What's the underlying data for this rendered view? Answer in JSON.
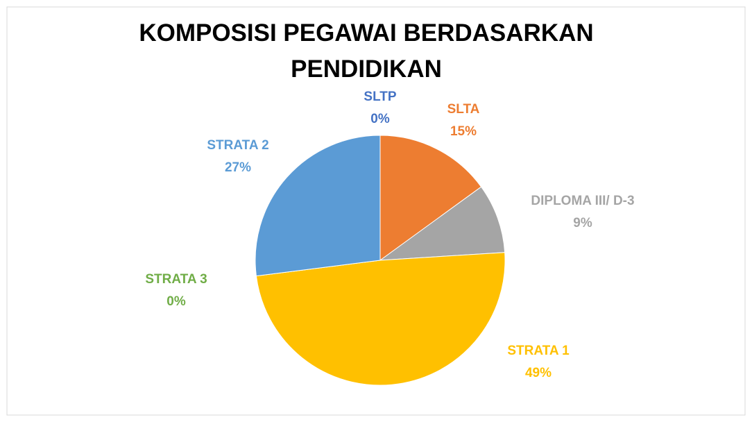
{
  "chart_data": {
    "type": "pie",
    "title": "KOMPOSISI PEGAWAI BERDASARKAN PENDIDIKAN",
    "categories": [
      "SLTP",
      "SLTA",
      "DIPLOMA III/ D-3",
      "STRATA 1",
      "STRATA 3",
      "STRATA 2"
    ],
    "values": [
      0,
      15,
      9,
      49,
      0,
      27
    ],
    "value_labels": [
      "0%",
      "15%",
      "9%",
      "49%",
      "0%",
      "27%"
    ],
    "colors": [
      "#4472c4",
      "#ed7d31",
      "#a5a5a5",
      "#ffc000",
      "#70ad47",
      "#5b9bd5"
    ]
  }
}
